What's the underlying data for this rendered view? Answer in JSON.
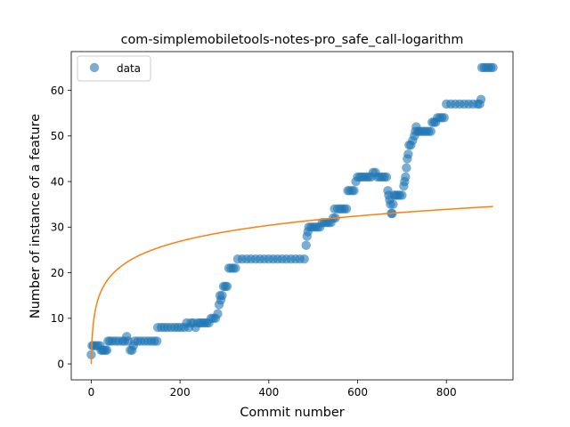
{
  "chart_data": {
    "type": "scatter",
    "title": "com-simplemobiletools-notes-pro_safe_call-logarithm",
    "xlabel": "Commit number",
    "ylabel": "Number of instance of a feature",
    "xlim": [
      -45,
      950
    ],
    "ylim": [
      -3.5,
      68.5
    ],
    "xticks": [
      0,
      200,
      400,
      600,
      800
    ],
    "yticks": [
      0,
      10,
      20,
      30,
      40,
      50,
      60
    ],
    "grid": false,
    "legend": {
      "position": "top-left",
      "entries": [
        "data"
      ]
    },
    "colors": {
      "data": "#1f77b4",
      "fit": "#ff7f0e"
    },
    "series": [
      {
        "name": "data",
        "kind": "scatter",
        "points": [
          [
            0,
            2
          ],
          [
            2,
            4
          ],
          [
            5,
            4
          ],
          [
            10,
            4
          ],
          [
            15,
            4
          ],
          [
            20,
            4
          ],
          [
            22,
            3
          ],
          [
            25,
            3
          ],
          [
            28,
            3
          ],
          [
            32,
            3
          ],
          [
            35,
            3
          ],
          [
            38,
            5
          ],
          [
            42,
            5
          ],
          [
            48,
            5
          ],
          [
            55,
            5
          ],
          [
            62,
            5
          ],
          [
            70,
            5
          ],
          [
            75,
            5
          ],
          [
            80,
            6
          ],
          [
            83,
            5
          ],
          [
            88,
            3
          ],
          [
            92,
            3
          ],
          [
            95,
            4
          ],
          [
            98,
            5
          ],
          [
            105,
            5
          ],
          [
            112,
            5
          ],
          [
            120,
            5
          ],
          [
            128,
            5
          ],
          [
            135,
            5
          ],
          [
            142,
            5
          ],
          [
            148,
            5
          ],
          [
            150,
            8
          ],
          [
            158,
            8
          ],
          [
            165,
            8
          ],
          [
            172,
            8
          ],
          [
            180,
            8
          ],
          [
            188,
            8
          ],
          [
            195,
            8
          ],
          [
            202,
            8
          ],
          [
            210,
            8
          ],
          [
            215,
            9
          ],
          [
            220,
            8
          ],
          [
            225,
            9
          ],
          [
            230,
            9
          ],
          [
            235,
            8
          ],
          [
            240,
            9
          ],
          [
            245,
            9
          ],
          [
            250,
            9
          ],
          [
            255,
            9
          ],
          [
            260,
            9
          ],
          [
            265,
            9
          ],
          [
            270,
            10
          ],
          [
            275,
            10
          ],
          [
            280,
            10
          ],
          [
            285,
            11
          ],
          [
            288,
            13
          ],
          [
            290,
            15
          ],
          [
            292,
            14
          ],
          [
            295,
            15
          ],
          [
            298,
            17
          ],
          [
            302,
            17
          ],
          [
            306,
            17
          ],
          [
            310,
            21
          ],
          [
            315,
            21
          ],
          [
            320,
            21
          ],
          [
            325,
            21
          ],
          [
            330,
            23
          ],
          [
            340,
            23
          ],
          [
            350,
            23
          ],
          [
            360,
            23
          ],
          [
            370,
            23
          ],
          [
            380,
            23
          ],
          [
            390,
            23
          ],
          [
            400,
            23
          ],
          [
            410,
            23
          ],
          [
            420,
            23
          ],
          [
            430,
            23
          ],
          [
            440,
            23
          ],
          [
            450,
            23
          ],
          [
            460,
            23
          ],
          [
            470,
            23
          ],
          [
            480,
            23
          ],
          [
            484,
            26
          ],
          [
            486,
            28
          ],
          [
            488,
            29
          ],
          [
            490,
            30
          ],
          [
            495,
            30
          ],
          [
            500,
            30
          ],
          [
            505,
            30
          ],
          [
            510,
            30
          ],
          [
            515,
            30
          ],
          [
            520,
            31
          ],
          [
            525,
            31
          ],
          [
            530,
            31
          ],
          [
            535,
            31
          ],
          [
            540,
            31
          ],
          [
            545,
            32
          ],
          [
            550,
            32
          ],
          [
            548,
            34
          ],
          [
            555,
            34
          ],
          [
            560,
            34
          ],
          [
            565,
            34
          ],
          [
            570,
            34
          ],
          [
            575,
            34
          ],
          [
            578,
            38
          ],
          [
            582,
            38
          ],
          [
            588,
            38
          ],
          [
            592,
            38
          ],
          [
            596,
            40
          ],
          [
            600,
            41
          ],
          [
            605,
            41
          ],
          [
            610,
            41
          ],
          [
            615,
            41
          ],
          [
            620,
            41
          ],
          [
            625,
            41
          ],
          [
            630,
            41
          ],
          [
            635,
            42
          ],
          [
            640,
            42
          ],
          [
            645,
            41
          ],
          [
            650,
            41
          ],
          [
            655,
            41
          ],
          [
            660,
            41
          ],
          [
            665,
            41
          ],
          [
            668,
            38
          ],
          [
            670,
            37
          ],
          [
            672,
            36
          ],
          [
            674,
            35
          ],
          [
            676,
            33
          ],
          [
            678,
            33
          ],
          [
            680,
            35
          ],
          [
            682,
            37
          ],
          [
            686,
            37
          ],
          [
            690,
            37
          ],
          [
            695,
            37
          ],
          [
            700,
            37
          ],
          [
            704,
            39
          ],
          [
            706,
            40
          ],
          [
            708,
            41
          ],
          [
            710,
            43
          ],
          [
            712,
            45
          ],
          [
            714,
            46
          ],
          [
            716,
            48
          ],
          [
            720,
            48
          ],
          [
            724,
            49
          ],
          [
            728,
            50
          ],
          [
            730,
            51
          ],
          [
            732,
            52
          ],
          [
            736,
            51
          ],
          [
            740,
            51
          ],
          [
            745,
            51
          ],
          [
            750,
            51
          ],
          [
            755,
            51
          ],
          [
            760,
            51
          ],
          [
            765,
            51
          ],
          [
            768,
            53
          ],
          [
            772,
            53
          ],
          [
            776,
            53
          ],
          [
            780,
            54
          ],
          [
            785,
            54
          ],
          [
            790,
            54
          ],
          [
            795,
            54
          ],
          [
            800,
            57
          ],
          [
            810,
            57
          ],
          [
            820,
            57
          ],
          [
            830,
            57
          ],
          [
            840,
            57
          ],
          [
            850,
            57
          ],
          [
            860,
            57
          ],
          [
            870,
            57
          ],
          [
            875,
            57
          ],
          [
            878,
            58
          ],
          [
            880,
            65
          ],
          [
            885,
            65
          ],
          [
            890,
            65
          ],
          [
            895,
            65
          ],
          [
            900,
            65
          ],
          [
            905,
            65
          ]
        ]
      },
      {
        "kind": "line",
        "model": "logarithmic",
        "equation": {
          "a": 5.07,
          "b": 0.0
        },
        "x_range": [
          0,
          905
        ]
      }
    ]
  }
}
